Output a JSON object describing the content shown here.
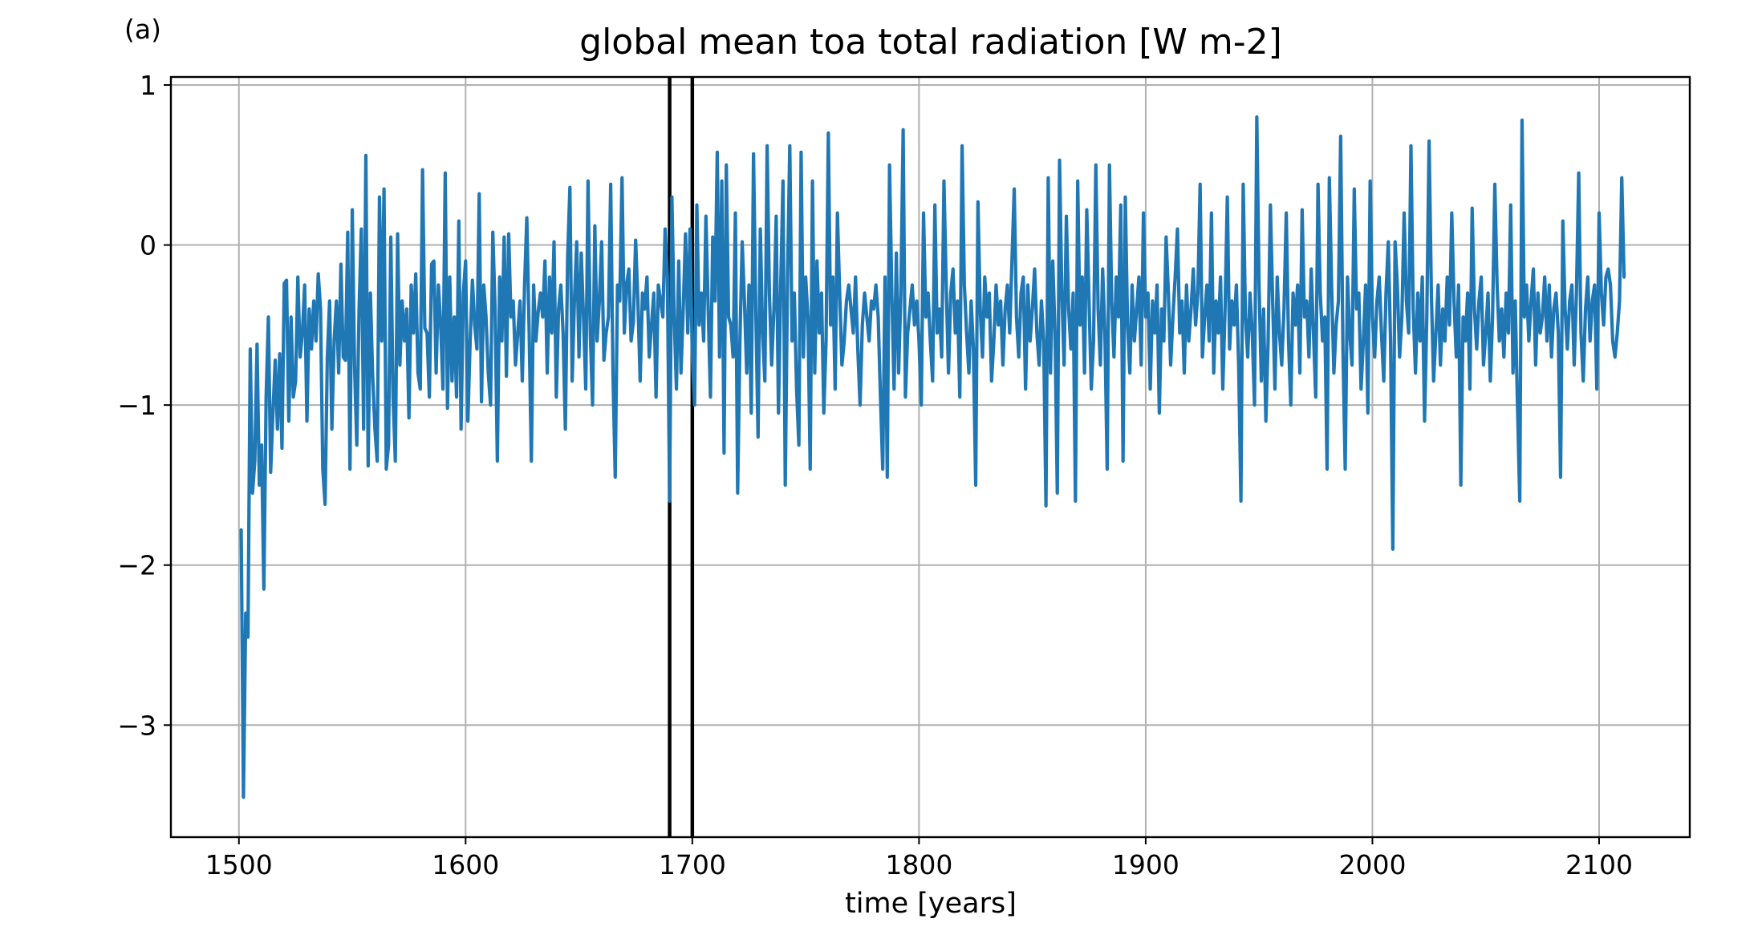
{
  "chart_data": {
    "type": "line",
    "panel_label": "(a)",
    "title": "global mean toa total radiation [W m-2]",
    "xlabel": "time [years]",
    "ylabel": "",
    "xlim": [
      1470,
      2140
    ],
    "ylim": [
      -3.7,
      1.05
    ],
    "grid": true,
    "x_ticks": [
      1500,
      1600,
      1700,
      1800,
      1900,
      2000,
      2100
    ],
    "y_ticks": [
      -3,
      -2,
      -1,
      0,
      1
    ],
    "x_tick_labels": [
      "1500",
      "1600",
      "1700",
      "1800",
      "1900",
      "2000",
      "2100"
    ],
    "y_tick_labels": [
      "−3",
      "−2",
      "−1",
      "0",
      "1"
    ],
    "series_color": "#1f77b4",
    "marker_color": "#000000",
    "vertical_markers": [
      1690,
      1700
    ],
    "series": [
      {
        "x_start": 1501,
        "x_step": 1,
        "values": [
          -1.78,
          -3.45,
          -2.3,
          -2.45,
          -0.65,
          -1.55,
          -1.35,
          -0.62,
          -1.5,
          -1.25,
          -2.15,
          -0.95,
          -0.45,
          -1.42,
          -1.05,
          -0.72,
          -1.15,
          -0.68,
          -1.27,
          -0.24,
          -0.22,
          -1.1,
          -0.45,
          -0.95,
          -0.85,
          -0.2,
          -0.7,
          -0.55,
          -0.25,
          -1.1,
          -0.4,
          -0.65,
          -0.35,
          -0.6,
          -0.18,
          -0.4,
          -1.4,
          -1.62,
          -0.7,
          -0.35,
          -1.15,
          -0.6,
          -0.35,
          -0.8,
          -0.12,
          -0.7,
          -0.72,
          0.08,
          -1.4,
          0.22,
          -0.75,
          -1.25,
          -0.4,
          0.1,
          -1.15,
          0.56,
          -1.38,
          -0.3,
          -0.82,
          -1.15,
          -1.35,
          0.3,
          -0.6,
          0.35,
          -1.4,
          -1.25,
          0.05,
          -0.95,
          -1.35,
          0.07,
          -0.75,
          -0.35,
          -0.6,
          -0.4,
          -1.08,
          -0.25,
          -0.55,
          -0.18,
          -0.8,
          -0.9,
          0.47,
          -0.52,
          -0.55,
          -0.95,
          -0.12,
          -0.1,
          -0.8,
          -0.25,
          -0.5,
          -0.9,
          0.45,
          -1.02,
          -0.2,
          -0.85,
          -0.45,
          -0.95,
          0.15,
          -1.15,
          -0.3,
          -0.1,
          -1.1,
          -0.6,
          -0.22,
          -0.5,
          -0.65,
          0.32,
          -0.98,
          -0.25,
          -0.45,
          -0.8,
          -1.0,
          0.08,
          -0.4,
          -1.35,
          -0.2,
          -0.6,
          0.05,
          -0.82,
          0.07,
          -0.45,
          -0.35,
          -0.75,
          -0.55,
          -0.35,
          -0.85,
          -0.25,
          0.17,
          -0.52,
          -1.35,
          -0.25,
          -0.6,
          -0.42,
          -0.3,
          -0.45,
          -0.1,
          -0.8,
          -0.2,
          -0.55,
          0.02,
          -0.95,
          -0.4,
          -0.25,
          -0.55,
          -1.15,
          -0.08,
          0.36,
          -0.85,
          -0.35,
          0.02,
          -0.7,
          -0.05,
          -0.45,
          -0.9,
          0.4,
          -0.55,
          -1.0,
          0.12,
          -0.6,
          -0.35,
          0.02,
          -0.72,
          -0.55,
          -0.45,
          0.38,
          -0.8,
          -1.45,
          -0.25,
          -0.35,
          0.42,
          -0.55,
          -0.25,
          -0.15,
          -0.6,
          -0.48,
          0.03,
          -0.35,
          -0.85,
          -0.3,
          -0.4,
          -0.2,
          -0.7,
          -0.5,
          -0.3,
          -0.95,
          -0.25,
          -0.35,
          -0.45,
          0.1,
          -0.2,
          -1.6,
          0.3,
          -0.45,
          -0.9,
          -0.1,
          -0.8,
          -0.4,
          0.07,
          -0.55,
          0.1,
          -0.7,
          -1.0,
          0.25,
          -0.5,
          -0.3,
          -0.6,
          0.18,
          -0.4,
          -0.95,
          0.05,
          -0.35,
          0.58,
          -0.7,
          0.4,
          -1.3,
          0.5,
          -0.45,
          -0.5,
          -0.7,
          0.2,
          -1.55,
          -0.6,
          0.02,
          -0.35,
          -0.8,
          -0.25,
          -1.05,
          0.57,
          -0.4,
          -1.2,
          0.1,
          -0.55,
          -0.85,
          0.62,
          -0.3,
          -0.75,
          -0.4,
          0.18,
          -1.05,
          -0.25,
          0.4,
          -1.5,
          -0.2,
          0.62,
          -0.6,
          -0.3,
          -0.9,
          -1.25,
          0.58,
          -0.7,
          -0.2,
          -0.45,
          -1.4,
          0.4,
          -0.8,
          -0.1,
          -0.55,
          -0.3,
          -1.05,
          -0.6,
          0.7,
          -0.5,
          -0.2,
          -0.9,
          0.2,
          -0.3,
          -0.75,
          -0.6,
          -0.35,
          -0.25,
          -0.4,
          -0.55,
          -0.2,
          -0.65,
          -1.0,
          -0.5,
          -0.3,
          -0.45,
          -0.6,
          -0.35,
          -0.4,
          -0.25,
          -0.45,
          -0.95,
          -1.4,
          -0.2,
          -1.45,
          0.5,
          -0.3,
          -0.9,
          -0.05,
          -0.8,
          -0.3,
          0.72,
          -0.95,
          -0.55,
          -0.4,
          -0.25,
          -0.5,
          -0.35,
          -0.6,
          -1.0,
          0.2,
          -0.45,
          -0.3,
          -0.6,
          -0.85,
          0.25,
          -0.55,
          -0.4,
          -0.7,
          0.4,
          -0.25,
          -0.8,
          -0.3,
          -0.15,
          -0.55,
          -0.35,
          -0.95,
          0.62,
          -0.25,
          -0.55,
          -0.8,
          -0.35,
          -0.65,
          -1.5,
          0.27,
          -0.4,
          -0.7,
          -0.2,
          -0.45,
          -0.3,
          -0.85,
          -0.6,
          -0.25,
          -0.5,
          -0.35,
          -0.75,
          -0.4,
          -0.25,
          -0.55,
          -0.1,
          0.35,
          -0.45,
          -0.7,
          -0.3,
          -0.2,
          -0.9,
          -0.25,
          -0.6,
          -0.4,
          -0.15,
          -0.55,
          -0.75,
          -0.35,
          -0.6,
          -1.63,
          0.42,
          -0.8,
          -0.1,
          -0.55,
          -1.55,
          0.53,
          -0.3,
          -0.75,
          0.18,
          -0.4,
          -0.65,
          -0.3,
          -1.6,
          0.4,
          -0.5,
          -0.2,
          -0.8,
          0.22,
          -0.35,
          -0.9,
          -0.6,
          0.5,
          -0.4,
          -0.75,
          -0.15,
          -0.55,
          -1.4,
          0.5,
          -0.35,
          -0.7,
          -0.2,
          -0.45,
          0.25,
          -1.35,
          0.3,
          -0.5,
          -0.8,
          -0.25,
          -0.6,
          -0.4,
          -0.2,
          -0.75,
          0.2,
          -0.45,
          -0.3,
          -0.9,
          -0.35,
          -0.55,
          -0.25,
          -1.05,
          -0.4,
          -0.6,
          0.05,
          -0.3,
          -0.75,
          -0.45,
          -0.2,
          0.1,
          -0.55,
          -0.35,
          -0.8,
          -0.25,
          -0.6,
          -0.4,
          -0.15,
          -0.5,
          -0.3,
          0.38,
          -0.7,
          -0.45,
          -0.25,
          -0.6,
          0.2,
          -0.8,
          -0.35,
          -0.55,
          -0.2,
          -0.9,
          -0.4,
          0.3,
          -0.65,
          -0.35,
          -0.5,
          -0.25,
          -0.75,
          -1.6,
          0.38,
          -0.45,
          -0.7,
          -0.3,
          -0.55,
          -1.0,
          0.8,
          -0.25,
          -0.85,
          -0.4,
          -1.1,
          -0.6,
          0.25,
          -0.35,
          -0.9,
          -0.2,
          -0.55,
          -0.75,
          -0.4,
          0.2,
          -0.6,
          -1.0,
          -0.3,
          -0.5,
          -0.25,
          -0.8,
          0.22,
          -0.45,
          -0.35,
          -0.7,
          -0.15,
          -0.55,
          -0.95,
          0.38,
          -0.3,
          -0.6,
          -0.45,
          -1.4,
          0.42,
          -0.25,
          -0.8,
          -0.5,
          -0.35,
          0.68,
          -0.65,
          -1.4,
          -0.2,
          -0.55,
          -0.75,
          0.35,
          -0.4,
          -0.3,
          -0.9,
          -0.6,
          -0.25,
          -1.05,
          0.4,
          -0.45,
          -0.7,
          -0.35,
          -0.2,
          -0.55,
          -0.85,
          -0.3,
          0.02,
          -0.6,
          -1.9,
          0.02,
          -0.25,
          -0.7,
          -0.45,
          0.2,
          -0.35,
          -0.55,
          0.62,
          -0.4,
          -0.8,
          -0.3,
          -0.6,
          -0.2,
          -1.1,
          -0.45,
          0.65,
          -0.3,
          -0.85,
          -0.55,
          -0.25,
          -0.75,
          -0.4,
          -0.6,
          -0.2,
          -0.5,
          0.2,
          -0.35,
          -0.7,
          -0.25,
          -1.5,
          -0.45,
          -0.6,
          -0.3,
          -0.9,
          0.23,
          -0.4,
          -0.65,
          -0.35,
          -0.2,
          -0.75,
          -0.55,
          -0.3,
          -0.85,
          -0.45,
          0.38,
          -0.25,
          -0.6,
          -0.4,
          -0.7,
          -0.3,
          -0.55,
          0.25,
          -0.8,
          -0.35,
          -1.0,
          -1.6,
          0.78,
          -0.45,
          -0.25,
          -0.6,
          -0.35,
          -0.15,
          -0.75,
          -0.3,
          -0.55,
          -0.45,
          -0.2,
          -0.6,
          -0.25,
          -0.7,
          -0.4,
          -0.3,
          -0.55,
          -1.45,
          0.15,
          -0.4,
          -0.65,
          -0.35,
          -0.25,
          -0.75,
          -0.3,
          0.45,
          -0.55,
          -0.85,
          -0.4,
          -0.2,
          -0.6,
          -0.35,
          -0.25,
          -0.9,
          0.2,
          -0.3,
          -0.5,
          -0.2,
          -0.15,
          -0.25,
          -0.6,
          -0.7,
          -0.55,
          -0.35,
          0.42,
          -0.2
        ]
      }
    ]
  }
}
